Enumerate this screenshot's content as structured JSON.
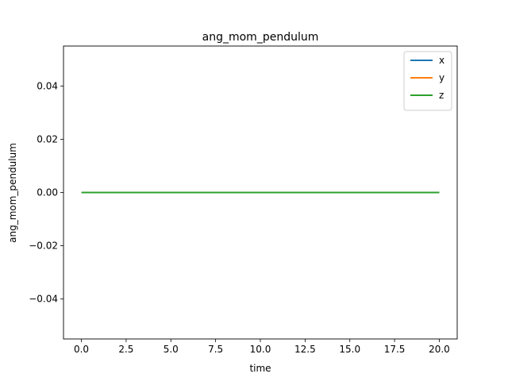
{
  "chart_data": {
    "type": "line",
    "title": "ang_mom_pendulum",
    "xlabel": "time",
    "ylabel": "ang_mom_pendulum",
    "xlim": [
      -1.0,
      21.0
    ],
    "ylim": [
      -0.055,
      0.055
    ],
    "xticks": [
      0.0,
      2.5,
      5.0,
      7.5,
      10.0,
      12.5,
      15.0,
      17.5,
      20.0
    ],
    "xtick_labels": [
      "0.0",
      "2.5",
      "5.0",
      "7.5",
      "10.0",
      "12.5",
      "15.0",
      "17.5",
      "20.0"
    ],
    "yticks": [
      -0.04,
      -0.02,
      0.0,
      0.02,
      0.04
    ],
    "ytick_labels": [
      "−0.04",
      "−0.02",
      "0.00",
      "0.02",
      "0.04"
    ],
    "grid": false,
    "legend_position": "upper-right",
    "series": [
      {
        "name": "x",
        "color": "#1f77b4",
        "x": [
          0.0,
          20.0
        ],
        "y": [
          0.0,
          0.0
        ]
      },
      {
        "name": "y",
        "color": "#ff7f0e",
        "x": [
          0.0,
          20.0
        ],
        "y": [
          0.0,
          0.0
        ]
      },
      {
        "name": "z",
        "color": "#2ca02c",
        "x": [
          0.0,
          20.0
        ],
        "y": [
          0.0,
          0.0
        ]
      }
    ]
  }
}
